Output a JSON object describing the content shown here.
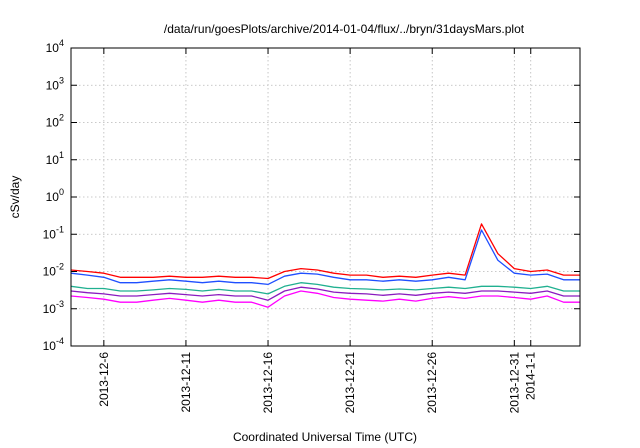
{
  "chart_data": {
    "type": "line",
    "title": "/data/run/goesPlots/archive/2014-01-04/flux/../bryn/31daysMars.plot",
    "xlabel": "Coordinated Universal Time (UTC)",
    "ylabel": "cSv/day",
    "yscale": "log",
    "ylim": [
      0.0001,
      10000
    ],
    "xlim": [
      "2013-12-04",
      "2014-01-04"
    ],
    "grid": true,
    "legend": "none",
    "x_ticks": [
      {
        "date": "2013-12-06",
        "label": "2013-12-6"
      },
      {
        "date": "2013-12-11",
        "label": "2013-12-11"
      },
      {
        "date": "2013-12-16",
        "label": "2013-12-16"
      },
      {
        "date": "2013-12-21",
        "label": "2013-12-21"
      },
      {
        "date": "2013-12-26",
        "label": "2013-12-26"
      },
      {
        "date": "2013-12-31",
        "label": "2013-12-31"
      },
      {
        "date": "2014-01-01",
        "label": "2014-1-1"
      }
    ],
    "y_ticks": [
      {
        "value": 0.0001,
        "base": "10",
        "exp": "-4"
      },
      {
        "value": 0.001,
        "base": "10",
        "exp": "-3"
      },
      {
        "value": 0.01,
        "base": "10",
        "exp": "-2"
      },
      {
        "value": 0.1,
        "base": "10",
        "exp": "-1"
      },
      {
        "value": 1,
        "base": "10",
        "exp": "0"
      },
      {
        "value": 10,
        "base": "10",
        "exp": "1"
      },
      {
        "value": 100,
        "base": "10",
        "exp": "2"
      },
      {
        "value": 1000,
        "base": "10",
        "exp": "3"
      },
      {
        "value": 10000,
        "base": "10",
        "exp": "4"
      }
    ],
    "series": [
      {
        "color": "#ff0000",
        "x": [
          "2013-12-04",
          "2013-12-05",
          "2013-12-06",
          "2013-12-07",
          "2013-12-08",
          "2013-12-09",
          "2013-12-10",
          "2013-12-11",
          "2013-12-12",
          "2013-12-13",
          "2013-12-14",
          "2013-12-15",
          "2013-12-16",
          "2013-12-17",
          "2013-12-18",
          "2013-12-19",
          "2013-12-20",
          "2013-12-21",
          "2013-12-22",
          "2013-12-23",
          "2013-12-24",
          "2013-12-25",
          "2013-12-26",
          "2013-12-27",
          "2013-12-28",
          "2013-12-29",
          "2013-12-30",
          "2013-12-31",
          "2014-01-01",
          "2014-01-02",
          "2014-01-03",
          "2014-01-04"
        ],
        "values": [
          0.011,
          0.01,
          0.009,
          0.007,
          0.007,
          0.007,
          0.0075,
          0.007,
          0.007,
          0.0075,
          0.007,
          0.007,
          0.0065,
          0.01,
          0.012,
          0.011,
          0.009,
          0.008,
          0.008,
          0.007,
          0.0075,
          0.007,
          0.008,
          0.009,
          0.008,
          0.19,
          0.03,
          0.012,
          0.01,
          0.011,
          0.008,
          0.008
        ]
      },
      {
        "color": "#1f4fff",
        "x": [
          "2013-12-04",
          "2013-12-05",
          "2013-12-06",
          "2013-12-07",
          "2013-12-08",
          "2013-12-09",
          "2013-12-10",
          "2013-12-11",
          "2013-12-12",
          "2013-12-13",
          "2013-12-14",
          "2013-12-15",
          "2013-12-16",
          "2013-12-17",
          "2013-12-18",
          "2013-12-19",
          "2013-12-20",
          "2013-12-21",
          "2013-12-22",
          "2013-12-23",
          "2013-12-24",
          "2013-12-25",
          "2013-12-26",
          "2013-12-27",
          "2013-12-28",
          "2013-12-29",
          "2013-12-30",
          "2013-12-31",
          "2014-01-01",
          "2014-01-02",
          "2014-01-03",
          "2014-01-04"
        ],
        "values": [
          0.009,
          0.008,
          0.007,
          0.005,
          0.005,
          0.0055,
          0.006,
          0.0055,
          0.005,
          0.0055,
          0.005,
          0.005,
          0.0045,
          0.0075,
          0.009,
          0.0085,
          0.007,
          0.006,
          0.006,
          0.0055,
          0.006,
          0.0055,
          0.006,
          0.007,
          0.006,
          0.13,
          0.02,
          0.009,
          0.008,
          0.0085,
          0.006,
          0.006
        ]
      },
      {
        "color": "#20b090",
        "x": [
          "2013-12-04",
          "2013-12-05",
          "2013-12-06",
          "2013-12-07",
          "2013-12-08",
          "2013-12-09",
          "2013-12-10",
          "2013-12-11",
          "2013-12-12",
          "2013-12-13",
          "2013-12-14",
          "2013-12-15",
          "2013-12-16",
          "2013-12-17",
          "2013-12-18",
          "2013-12-19",
          "2013-12-20",
          "2013-12-21",
          "2013-12-22",
          "2013-12-23",
          "2013-12-24",
          "2013-12-25",
          "2013-12-26",
          "2013-12-27",
          "2013-12-28",
          "2013-12-29",
          "2013-12-30",
          "2013-12-31",
          "2014-01-01",
          "2014-01-02",
          "2014-01-03",
          "2014-01-04"
        ],
        "values": [
          0.004,
          0.0035,
          0.0035,
          0.003,
          0.003,
          0.0032,
          0.0035,
          0.0033,
          0.003,
          0.0033,
          0.003,
          0.003,
          0.0025,
          0.004,
          0.005,
          0.0045,
          0.0038,
          0.0035,
          0.0034,
          0.0032,
          0.0034,
          0.0032,
          0.0035,
          0.0038,
          0.0035,
          0.004,
          0.004,
          0.0038,
          0.0035,
          0.004,
          0.003,
          0.003
        ]
      },
      {
        "color": "#8a1bbf",
        "x": [
          "2013-12-04",
          "2013-12-05",
          "2013-12-06",
          "2013-12-07",
          "2013-12-08",
          "2013-12-09",
          "2013-12-10",
          "2013-12-11",
          "2013-12-12",
          "2013-12-13",
          "2013-12-14",
          "2013-12-15",
          "2013-12-16",
          "2013-12-17",
          "2013-12-18",
          "2013-12-19",
          "2013-12-20",
          "2013-12-21",
          "2013-12-22",
          "2013-12-23",
          "2013-12-24",
          "2013-12-25",
          "2013-12-26",
          "2013-12-27",
          "2013-12-28",
          "2013-12-29",
          "2013-12-30",
          "2013-12-31",
          "2014-01-01",
          "2014-01-02",
          "2014-01-03",
          "2014-01-04"
        ],
        "values": [
          0.003,
          0.0027,
          0.0025,
          0.0022,
          0.0022,
          0.0024,
          0.0026,
          0.0024,
          0.0022,
          0.0024,
          0.0022,
          0.0022,
          0.0017,
          0.003,
          0.0038,
          0.0034,
          0.0028,
          0.0026,
          0.0025,
          0.0023,
          0.0025,
          0.0023,
          0.0026,
          0.0028,
          0.0026,
          0.003,
          0.003,
          0.0028,
          0.0026,
          0.003,
          0.0022,
          0.0022
        ]
      },
      {
        "color": "#ff00ff",
        "x": [
          "2013-12-04",
          "2013-12-05",
          "2013-12-06",
          "2013-12-07",
          "2013-12-08",
          "2013-12-09",
          "2013-12-10",
          "2013-12-11",
          "2013-12-12",
          "2013-12-13",
          "2013-12-14",
          "2013-12-15",
          "2013-12-16",
          "2013-12-17",
          "2013-12-18",
          "2013-12-19",
          "2013-12-20",
          "2013-12-21",
          "2013-12-22",
          "2013-12-23",
          "2013-12-24",
          "2013-12-25",
          "2013-12-26",
          "2013-12-27",
          "2013-12-28",
          "2013-12-29",
          "2013-12-30",
          "2013-12-31",
          "2014-01-01",
          "2014-01-02",
          "2014-01-03",
          "2014-01-04"
        ],
        "values": [
          0.0022,
          0.002,
          0.0018,
          0.0015,
          0.0015,
          0.0017,
          0.0019,
          0.0017,
          0.0015,
          0.0017,
          0.0015,
          0.0015,
          0.0011,
          0.0022,
          0.003,
          0.0026,
          0.002,
          0.0018,
          0.0017,
          0.0016,
          0.0018,
          0.0016,
          0.0019,
          0.0021,
          0.0019,
          0.0022,
          0.0022,
          0.002,
          0.0018,
          0.0022,
          0.0015,
          0.0015
        ]
      }
    ]
  }
}
